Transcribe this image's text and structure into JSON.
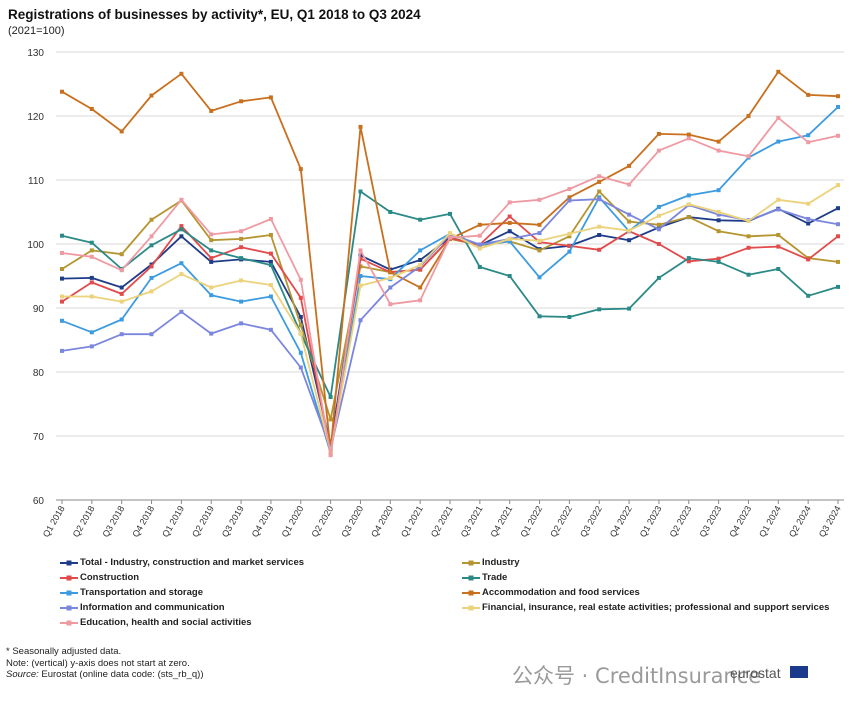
{
  "header": {
    "title": "Registrations of businesses by activity*, EU, Q1 2018 to Q3 2024",
    "subtitle": "(2021=100)"
  },
  "notes": {
    "line1": "* Seasonally adjusted data.",
    "line2": "Note: (vertical) y-axis does not start at zero.",
    "source_label": "Source:",
    "source_text": " Eurostat (online data code: (sts_rb_q))"
  },
  "watermark": {
    "text": "公众号 · CreditInsurance",
    "eurostat": "eurostat"
  },
  "chart_data": {
    "type": "line",
    "title": "Registrations of businesses by activity*, EU, Q1 2018 to Q3 2024",
    "subtitle": "(2021=100)",
    "ylim": [
      60,
      130
    ],
    "yticks": [
      60,
      70,
      80,
      90,
      100,
      110,
      120,
      130
    ],
    "grid": "horizontal",
    "legend_position": "bottom",
    "categories": [
      "Q1 2018",
      "Q2 2018",
      "Q3 2018",
      "Q4 2018",
      "Q1 2019",
      "Q2 2019",
      "Q3 2019",
      "Q4 2019",
      "Q1 2020",
      "Q2 2020",
      "Q3 2020",
      "Q4 2020",
      "Q1 2021",
      "Q2 2021",
      "Q3 2021",
      "Q4 2021",
      "Q1 2022",
      "Q2 2022",
      "Q3 2022",
      "Q4 2022",
      "Q1 2023",
      "Q2 2023",
      "Q3 2023",
      "Q4 2023",
      "Q1 2024",
      "Q2 2024",
      "Q3 2024"
    ],
    "series": [
      {
        "name": "Total - Industry, construction and market services",
        "color": "#1f3c88",
        "values": [
          94.6,
          94.7,
          93.2,
          96.8,
          101.2,
          97.2,
          97.6,
          97.2,
          88.6,
          68.5,
          98.2,
          96.0,
          97.5,
          101.0,
          99.8,
          102.0,
          99.2,
          99.7,
          101.4,
          100.6,
          102.6,
          104.2,
          103.7,
          103.6,
          105.5,
          103.2,
          105.6
        ]
      },
      {
        "name": "Industry",
        "color": "#b5952f",
        "values": [
          96.1,
          99.0,
          98.4,
          103.8,
          106.8,
          100.6,
          100.8,
          101.4,
          87.3,
          72.6,
          96.5,
          95.6,
          96.0,
          100.8,
          99.8,
          100.4,
          99.0,
          101.2,
          108.2,
          103.5,
          103.0,
          104.2,
          102.0,
          101.2,
          101.4,
          97.8,
          97.2
        ]
      },
      {
        "name": "Construction",
        "color": "#e24b4b",
        "values": [
          91.0,
          94.0,
          92.2,
          96.5,
          102.8,
          97.8,
          99.5,
          98.5,
          91.6,
          67.4,
          97.7,
          95.6,
          96.0,
          100.9,
          99.9,
          104.3,
          100.3,
          99.7,
          99.1,
          102.0,
          100.0,
          97.3,
          97.7,
          99.4,
          99.6,
          97.6,
          101.2
        ]
      },
      {
        "name": "Trade",
        "color": "#2b8a87",
        "values": [
          101.3,
          100.2,
          96.1,
          99.8,
          102.3,
          99.0,
          97.8,
          96.7,
          86.0,
          76.1,
          108.2,
          105.0,
          103.8,
          104.7,
          96.4,
          95.0,
          88.7,
          88.6,
          89.8,
          89.9,
          94.7,
          97.8,
          97.2,
          95.2,
          96.1,
          91.9,
          93.3
        ]
      },
      {
        "name": "Transportation and storage",
        "color": "#3d9be0",
        "values": [
          88.0,
          86.2,
          88.2,
          94.7,
          97.0,
          92.0,
          91.0,
          91.8,
          83.0,
          67.3,
          95.0,
          94.5,
          99.0,
          101.6,
          99.9,
          100.4,
          94.8,
          98.8,
          107.3,
          102.0,
          105.8,
          107.6,
          108.4,
          113.5,
          116.0,
          117.0,
          121.4
        ]
      },
      {
        "name": "Accommodation and food services",
        "color": "#c8701e",
        "values": [
          123.8,
          121.1,
          117.6,
          123.2,
          126.6,
          120.8,
          122.3,
          122.9,
          111.7,
          67.8,
          118.3,
          95.6,
          93.2,
          100.8,
          103.0,
          103.3,
          103.0,
          107.3,
          109.7,
          112.2,
          117.2,
          117.1,
          116.0,
          120.0,
          126.9,
          123.3,
          123.1
        ]
      },
      {
        "name": "Information and communication",
        "color": "#7b86dd",
        "values": [
          83.3,
          84.0,
          85.9,
          85.9,
          89.4,
          86.0,
          87.6,
          86.6,
          80.7,
          68.0,
          88.1,
          93.2,
          96.5,
          101.5,
          99.9,
          100.8,
          101.7,
          106.8,
          107.0,
          104.6,
          102.3,
          106.1,
          104.6,
          103.7,
          105.4,
          103.9,
          103.1
        ]
      },
      {
        "name": "Financial, insurance, real estate activities; professional and support services",
        "color": "#ecd27a",
        "values": [
          91.8,
          91.8,
          91.0,
          92.6,
          95.3,
          93.2,
          94.3,
          93.6,
          86.0,
          67.5,
          93.5,
          94.7,
          96.7,
          101.7,
          99.3,
          100.8,
          100.5,
          101.6,
          102.7,
          102.1,
          104.4,
          106.2,
          105.0,
          103.6,
          106.9,
          106.3,
          109.2
        ]
      },
      {
        "name": "Education,  health and social activities",
        "color": "#ef9aa2",
        "values": [
          98.6,
          98.0,
          95.9,
          101.2,
          106.9,
          101.5,
          102.0,
          103.9,
          94.4,
          67.0,
          99.0,
          90.6,
          91.2,
          101.0,
          101.3,
          106.5,
          106.9,
          108.6,
          110.6,
          109.3,
          114.6,
          116.5,
          114.6,
          113.7,
          119.7,
          115.9,
          116.9
        ]
      }
    ]
  }
}
